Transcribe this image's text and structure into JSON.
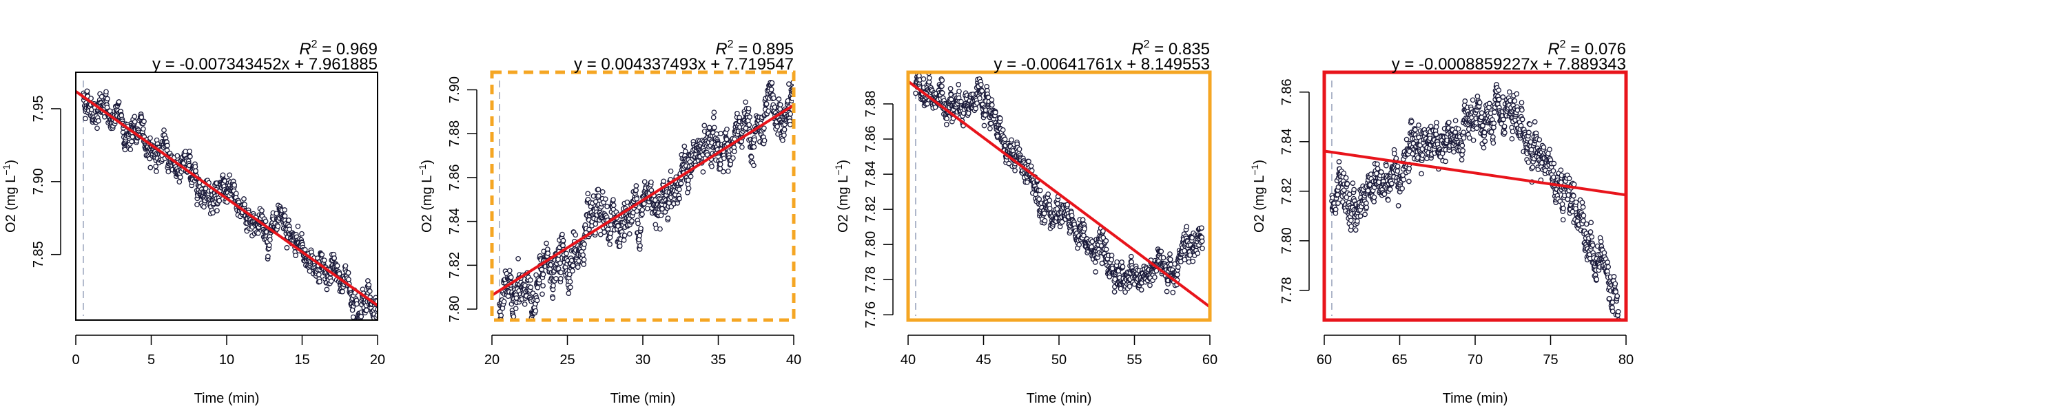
{
  "chart_data": [
    {
      "type": "scatter",
      "xlabel": "Time (min)",
      "ylabel_main": "O2 ",
      "ylabel_unit": "(mg L",
      "ylabel_sup": "−1",
      "ylabel_close": ")",
      "xlim": [
        0,
        20
      ],
      "ylim": [
        7.805,
        7.975
      ],
      "xticks": [
        0,
        5,
        10,
        15,
        20
      ],
      "yticks": [
        7.85,
        7.9,
        7.95
      ],
      "r2_label": "R",
      "r2_sup": "2",
      "r2_value": " = 0.969",
      "equation": "y = -0.007343452x + 7.961885",
      "fit": {
        "slope": -0.007343452,
        "intercept": 7.961885
      },
      "marker_x": 0.5,
      "frame": {
        "color": "#000000",
        "style": "solid"
      },
      "points": {
        "x_start": 0.5,
        "x_end": 20,
        "noise": 0.007,
        "trend": [
          [
            0.5,
            7.958
          ],
          [
            20,
            7.815
          ]
        ]
      }
    },
    {
      "type": "scatter",
      "xlabel": "Time (min)",
      "ylabel_main": "O2 ",
      "ylabel_unit": "(mg L",
      "ylabel_sup": "−1",
      "ylabel_close": ")",
      "xlim": [
        20,
        40
      ],
      "ylim": [
        7.795,
        7.908
      ],
      "xticks": [
        20,
        25,
        30,
        35,
        40
      ],
      "yticks": [
        7.8,
        7.82,
        7.84,
        7.86,
        7.88,
        7.9
      ],
      "r2_label": "R",
      "r2_sup": "2",
      "r2_value": " = 0.895",
      "equation": "y = 0.004337493x + 7.719547",
      "fit": {
        "slope": 0.004337493,
        "intercept": 7.719547
      },
      "marker_x": 20.5,
      "frame": {
        "color": "#f5a623",
        "style": "dashed"
      },
      "points": {
        "x_start": 20.5,
        "x_end": 40,
        "noise": 0.007,
        "trend": [
          [
            20.5,
            7.802
          ],
          [
            22,
            7.806
          ],
          [
            25,
            7.823
          ],
          [
            30,
            7.848
          ],
          [
            35,
            7.875
          ],
          [
            37,
            7.877
          ],
          [
            40,
            7.888
          ]
        ]
      }
    },
    {
      "type": "scatter",
      "xlabel": "Time (min)",
      "ylabel_main": "O2 ",
      "ylabel_unit": "(mg L",
      "ylabel_sup": "−1",
      "ylabel_close": ")",
      "xlim": [
        40,
        60
      ],
      "ylim": [
        7.757,
        7.898
      ],
      "xticks": [
        40,
        45,
        50,
        55,
        60
      ],
      "yticks": [
        7.76,
        7.78,
        7.8,
        7.82,
        7.84,
        7.86,
        7.88
      ],
      "r2_label": "R",
      "r2_sup": "2",
      "r2_value": " = 0.835",
      "equation": "y = -0.00641761x + 8.149553",
      "fit": {
        "slope": -0.00641761,
        "intercept": 8.149553
      },
      "marker_x": 40.5,
      "frame": {
        "color": "#f5a623",
        "style": "solid"
      },
      "points": {
        "x_start": 40.5,
        "x_end": 59.5,
        "noise": 0.006,
        "trend": [
          [
            40.5,
            7.89
          ],
          [
            42,
            7.882
          ],
          [
            44,
            7.884
          ],
          [
            45,
            7.876
          ],
          [
            47,
            7.852
          ],
          [
            50,
            7.818
          ],
          [
            53,
            7.79
          ],
          [
            55,
            7.778
          ],
          [
            57,
            7.787
          ],
          [
            59.5,
            7.803
          ]
        ]
      }
    },
    {
      "type": "scatter",
      "xlabel": "Time (min)",
      "ylabel_main": "O2 ",
      "ylabel_unit": "(mg L",
      "ylabel_sup": "−1",
      "ylabel_close": ")",
      "xlim": [
        60,
        80
      ],
      "ylim": [
        7.768,
        7.868
      ],
      "xticks": [
        60,
        65,
        70,
        75,
        80
      ],
      "yticks": [
        7.78,
        7.8,
        7.82,
        7.84,
        7.86
      ],
      "r2_label": "R",
      "r2_sup": "2",
      "r2_value": " = 0.076",
      "equation": "y = -0.0008859227x + 7.889343",
      "fit": {
        "slope": -0.0008859227,
        "intercept": 7.889343
      },
      "marker_x": 60.5,
      "frame": {
        "color": "#e8141b",
        "style": "solid"
      },
      "points": {
        "x_start": 60.5,
        "x_end": 79.5,
        "noise": 0.006,
        "trend": [
          [
            60.5,
            7.815
          ],
          [
            62,
            7.813
          ],
          [
            63,
            7.822
          ],
          [
            65,
            7.83
          ],
          [
            66,
            7.842
          ],
          [
            68,
            7.84
          ],
          [
            70,
            7.845
          ],
          [
            72,
            7.846
          ],
          [
            74,
            7.84
          ],
          [
            76,
            7.822
          ],
          [
            77,
            7.81
          ],
          [
            78,
            7.796
          ],
          [
            79.5,
            7.78
          ]
        ]
      }
    }
  ],
  "colors": {
    "point_stroke": "#1a1a3a",
    "point_fill": "#ffffff",
    "fit_line": "#e8141b",
    "marker_line": "#9ea8bf",
    "axis": "#000000"
  }
}
